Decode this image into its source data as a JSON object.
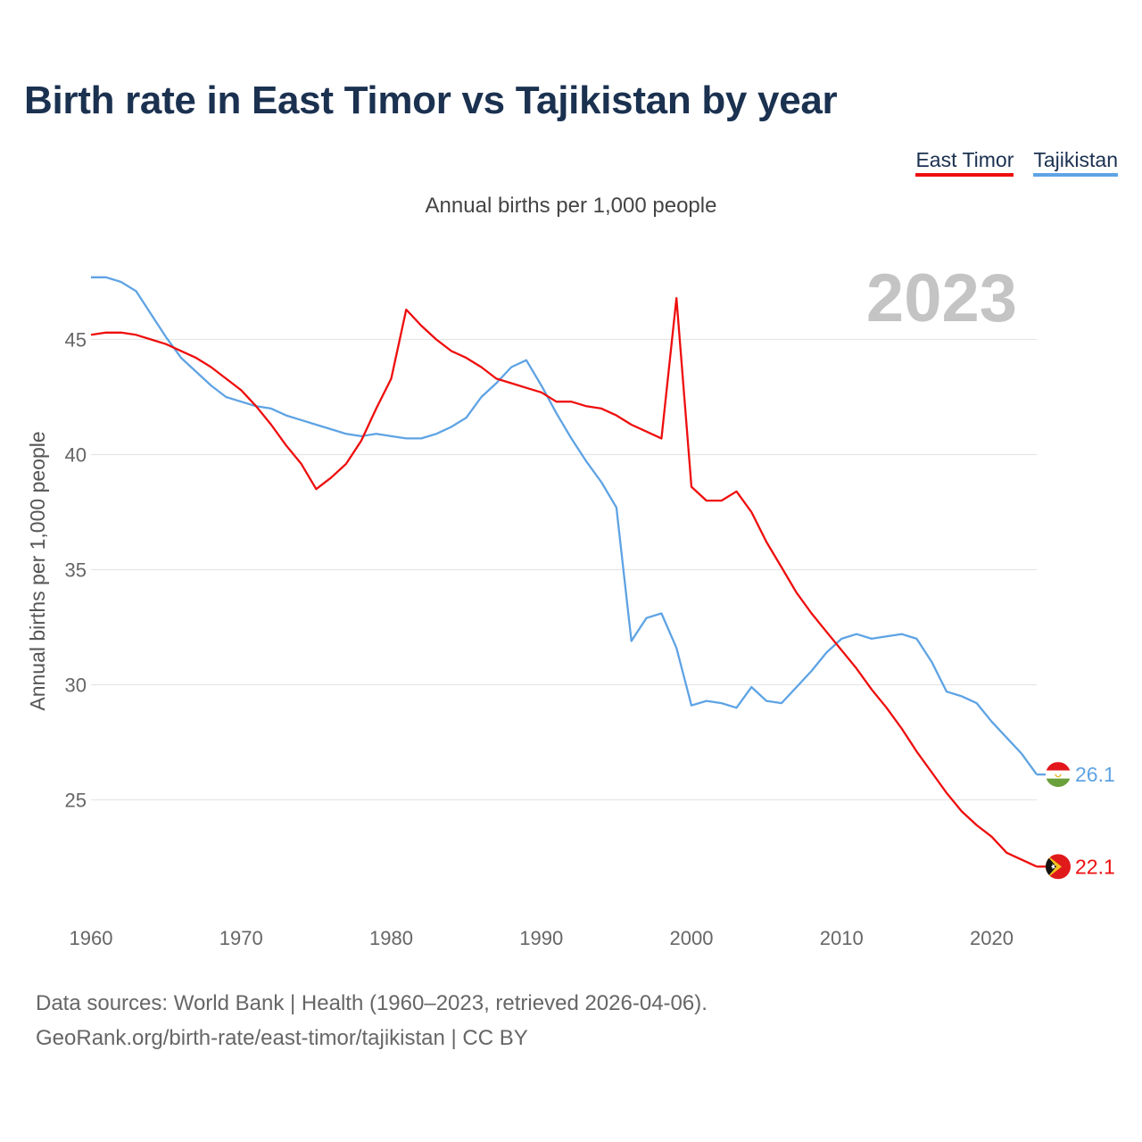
{
  "header": {
    "title": "Birth rate in East Timor vs Tajikistan by year",
    "subtitle": "Annual births per 1,000 people"
  },
  "legend": {
    "items": [
      {
        "label": "East Timor",
        "color": "#ee0d0d"
      },
      {
        "label": "Tajikistan",
        "color": "#5ea3e4"
      }
    ]
  },
  "chart_data": {
    "type": "line",
    "title": "Birth rate in East Timor vs Tajikistan by year",
    "subtitle": "Annual births per 1,000 people",
    "xlabel": "",
    "ylabel": "Annual births per 1,000 people",
    "year_watermark": "2023",
    "xlim": [
      1960,
      2023
    ],
    "ylim": [
      21,
      49
    ],
    "xticks": [
      1960,
      1970,
      1980,
      1990,
      2000,
      2010,
      2020
    ],
    "yticks": [
      25,
      30,
      35,
      40,
      45
    ],
    "grid": true,
    "x": [
      1960,
      1961,
      1962,
      1963,
      1964,
      1965,
      1966,
      1967,
      1968,
      1969,
      1970,
      1971,
      1972,
      1973,
      1974,
      1975,
      1976,
      1977,
      1978,
      1979,
      1980,
      1981,
      1982,
      1983,
      1984,
      1985,
      1986,
      1987,
      1988,
      1989,
      1990,
      1991,
      1992,
      1993,
      1994,
      1995,
      1996,
      1997,
      1998,
      1999,
      2000,
      2001,
      2002,
      2003,
      2004,
      2005,
      2006,
      2007,
      2008,
      2009,
      2010,
      2011,
      2012,
      2013,
      2014,
      2015,
      2016,
      2017,
      2018,
      2019,
      2020,
      2021,
      2022,
      2023
    ],
    "series": [
      {
        "name": "East Timor",
        "color": "#ee0d0d",
        "end_label": "22.1",
        "values": [
          45.2,
          45.3,
          45.3,
          45.2,
          45.0,
          44.8,
          44.5,
          44.2,
          43.8,
          43.3,
          42.8,
          42.1,
          41.3,
          40.4,
          39.6,
          38.5,
          39.0,
          39.6,
          40.6,
          42.0,
          43.3,
          46.3,
          45.6,
          45.0,
          44.5,
          44.2,
          43.8,
          43.3,
          43.1,
          42.9,
          42.7,
          42.3,
          42.3,
          42.1,
          42.0,
          41.7,
          41.3,
          41.0,
          40.7,
          46.8,
          38.6,
          38.0,
          38.0,
          38.4,
          37.5,
          36.2,
          35.1,
          34.0,
          33.1,
          32.3,
          31.5,
          30.7,
          29.8,
          29.0,
          28.1,
          27.1,
          26.2,
          25.3,
          24.5,
          23.9,
          23.4,
          22.7,
          22.4,
          22.1
        ]
      },
      {
        "name": "Tajikistan",
        "color": "#5ea3e4",
        "end_label": "26.1",
        "values": [
          47.7,
          47.7,
          47.5,
          47.1,
          46.1,
          45.1,
          44.2,
          43.6,
          43.0,
          42.5,
          42.3,
          42.1,
          42.0,
          41.7,
          41.5,
          41.3,
          41.1,
          40.9,
          40.8,
          40.9,
          40.8,
          40.7,
          40.7,
          40.9,
          41.2,
          41.6,
          42.5,
          43.1,
          43.8,
          44.1,
          43.0,
          41.8,
          40.7,
          39.7,
          38.8,
          37.7,
          31.9,
          32.9,
          33.1,
          31.6,
          29.1,
          29.3,
          29.2,
          29.0,
          29.9,
          29.3,
          29.2,
          29.9,
          30.6,
          31.4,
          32.0,
          32.2,
          32.0,
          32.1,
          32.2,
          32.0,
          31.0,
          29.7,
          29.5,
          29.2,
          28.4,
          27.7,
          27.0,
          26.1
        ]
      }
    ]
  },
  "footer": {
    "line1": "Data sources: World Bank | Health (1960–2023, retrieved 2026-04-06).",
    "line2": "GeoRank.org/birth-rate/east-timor/tajikistan | CC BY"
  }
}
